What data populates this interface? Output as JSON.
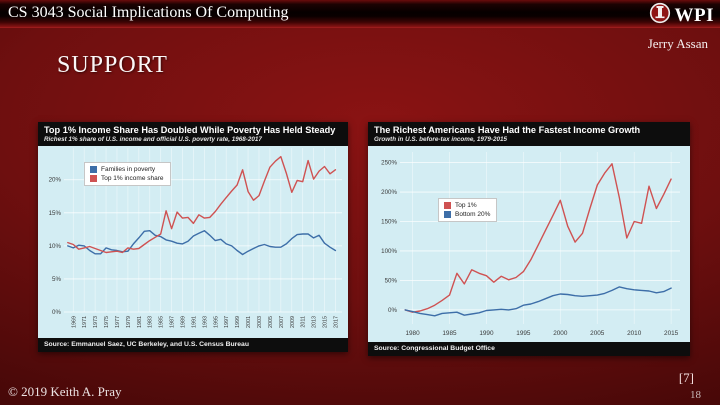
{
  "slide": {
    "course_title": "CS 3043 Social Implications Of Computing",
    "logo_text": "WPI",
    "author": "Jerry Assan",
    "title": "SUPPORT",
    "footer_copyright": "© 2019 Keith A. Pray",
    "reference_number": "[7]",
    "page_number": "18"
  },
  "colors": {
    "slide_background_center": "#8a1313",
    "slide_background_edge": "#2a0404",
    "panel_black": "#0d0d0d",
    "plot_background": "#d3edf3",
    "series_red": "#cf5252",
    "series_blue": "#3d6ea8"
  },
  "chart_data": [
    {
      "type": "line",
      "title": "Top 1% Income Share Has Doubled While Poverty Has Held Steady",
      "subtitle": "Richest 1% share of U.S. income and official U.S. poverty rate, 1968-2017",
      "source": "Source: Emmanuel Saez, UC Berkeley, and U.S. Census Bureau",
      "background": "#d3edf3",
      "grid": true,
      "legend_position": "top-left",
      "xlim": [
        1967.3,
        2018.2
      ],
      "ylim": [
        0,
        24.8
      ],
      "xticks": [
        1969,
        1971,
        1973,
        1975,
        1977,
        1979,
        1981,
        1983,
        1985,
        1987,
        1989,
        1991,
        1993,
        1995,
        1997,
        1999,
        2001,
        2003,
        2005,
        2007,
        2009,
        2011,
        2013,
        2015,
        2017
      ],
      "xtick_rotation": 90,
      "yticks": [
        0,
        5,
        10,
        15,
        20
      ],
      "ytick_suffix": "%",
      "x": [
        1968,
        1969,
        1970,
        1971,
        1972,
        1973,
        1974,
        1975,
        1976,
        1977,
        1978,
        1979,
        1980,
        1981,
        1982,
        1983,
        1984,
        1985,
        1986,
        1987,
        1988,
        1989,
        1990,
        1991,
        1992,
        1993,
        1994,
        1995,
        1996,
        1997,
        1998,
        1999,
        2000,
        2001,
        2002,
        2003,
        2004,
        2005,
        2006,
        2007,
        2008,
        2009,
        2010,
        2011,
        2012,
        2013,
        2014,
        2015,
        2016,
        2017
      ],
      "series": [
        {
          "name": "Families in poverty",
          "color": "#3d6ea8",
          "values": [
            10.0,
            9.7,
            10.1,
            10.0,
            9.3,
            8.8,
            8.8,
            9.7,
            9.4,
            9.3,
            9.1,
            9.2,
            10.3,
            11.2,
            12.2,
            12.3,
            11.6,
            11.4,
            10.9,
            10.7,
            10.4,
            10.3,
            10.7,
            11.5,
            11.9,
            12.3,
            11.6,
            10.8,
            11.0,
            10.3,
            10.0,
            9.3,
            8.7,
            9.2,
            9.6,
            10.0,
            10.2,
            9.9,
            9.8,
            9.8,
            10.3,
            11.1,
            11.7,
            11.8,
            11.8,
            11.2,
            11.6,
            10.4,
            9.8,
            9.3
          ]
        },
        {
          "name": "Top 1% income share",
          "color": "#cf5252",
          "values": [
            10.5,
            10.2,
            9.5,
            9.7,
            9.9,
            9.6,
            9.3,
            9.0,
            9.1,
            9.2,
            9.0,
            9.7,
            9.5,
            9.6,
            10.2,
            10.8,
            11.3,
            11.8,
            15.3,
            12.6,
            15.1,
            14.2,
            14.3,
            13.4,
            14.7,
            14.2,
            14.3,
            15.2,
            16.3,
            17.3,
            18.3,
            19.2,
            21.5,
            18.2,
            16.9,
            17.6,
            19.8,
            21.9,
            22.8,
            23.5,
            21.0,
            18.1,
            19.9,
            19.7,
            22.9,
            20.1,
            21.3,
            22.0,
            20.9,
            21.5
          ]
        }
      ]
    },
    {
      "type": "line",
      "title": "The Richest Americans Have Had the Fastest Income Growth",
      "subtitle": "Growth in U.S. before-tax income, 1979-2015",
      "source": "Source: Congressional Budget Office",
      "background": "#d3edf3",
      "grid": true,
      "legend_position": "upper-left",
      "xlim": [
        1978.3,
        2016.2
      ],
      "ylim": [
        -24,
        268
      ],
      "xticks": [
        1980,
        1985,
        1990,
        1995,
        2000,
        2005,
        2010,
        2015
      ],
      "xtick_rotation": 0,
      "yticks": [
        0,
        50,
        100,
        150,
        200,
        250
      ],
      "ytick_suffix": "%",
      "x": [
        1979,
        1980,
        1981,
        1982,
        1983,
        1984,
        1985,
        1986,
        1987,
        1988,
        1989,
        1990,
        1991,
        1992,
        1993,
        1994,
        1995,
        1996,
        1997,
        1998,
        1999,
        2000,
        2001,
        2002,
        2003,
        2004,
        2005,
        2006,
        2007,
        2008,
        2009,
        2010,
        2011,
        2012,
        2013,
        2014,
        2015
      ],
      "series": [
        {
          "name": "Top 1%",
          "color": "#cf5252",
          "values": [
            0,
            -4,
            -2,
            2,
            8,
            16,
            25,
            62,
            44,
            68,
            62,
            58,
            47,
            57,
            51,
            55,
            65,
            85,
            110,
            135,
            160,
            186,
            142,
            115,
            130,
            172,
            212,
            232,
            248,
            190,
            122,
            150,
            147,
            210,
            172,
            196,
            222
          ]
        },
        {
          "name": "Bottom 20%",
          "color": "#3d6ea8",
          "values": [
            0,
            -3,
            -6,
            -8,
            -10,
            -6,
            -5,
            -4,
            -9,
            -7,
            -5,
            -1,
            0,
            1,
            0,
            2,
            8,
            10,
            14,
            19,
            24,
            27,
            26,
            24,
            23,
            24,
            25,
            28,
            33,
            39,
            36,
            34,
            33,
            32,
            29,
            31,
            37
          ]
        }
      ]
    }
  ]
}
